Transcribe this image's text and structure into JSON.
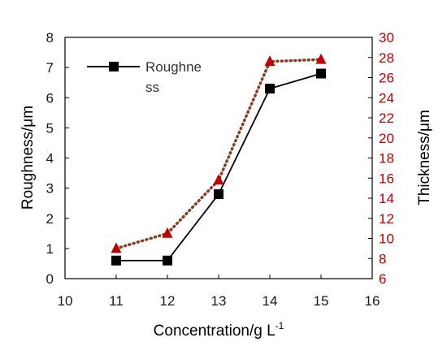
{
  "chart_data": {
    "type": "line",
    "xlabel": "Concentration/g L",
    "xlabel_sup": "-1",
    "ylabel": "Roughness/μm",
    "y2label": "Thickness/μm",
    "xlim": [
      10,
      16
    ],
    "ylim": [
      0,
      8
    ],
    "y2lim": [
      6,
      30
    ],
    "xticks": [
      "10",
      "11",
      "12",
      "13",
      "14",
      "15",
      "16"
    ],
    "yticks": [
      "0",
      "1",
      "2",
      "3",
      "4",
      "5",
      "6",
      "7",
      "8"
    ],
    "y2ticks": [
      "6",
      "8",
      "10",
      "12",
      "14",
      "16",
      "18",
      "20",
      "22",
      "24",
      "26",
      "28",
      "30"
    ],
    "grid": false,
    "legend": {
      "position": "top-left",
      "line1": "Roughne",
      "line2": "ss"
    },
    "series": [
      {
        "name": "Roughness",
        "axis": "left",
        "color": "#000000",
        "marker": "square",
        "line_style": "solid",
        "x": [
          11,
          12,
          13,
          14,
          15
        ],
        "y": [
          0.6,
          0.6,
          2.8,
          6.3,
          6.8
        ]
      },
      {
        "axis": "right",
        "color": "#c00000",
        "line_color": "#8b3a1e",
        "marker": "triangle",
        "line_style": "dotted",
        "x": [
          11,
          12,
          13,
          14,
          15
        ],
        "y": [
          9.0,
          10.5,
          15.8,
          27.6,
          27.8
        ]
      }
    ]
  }
}
